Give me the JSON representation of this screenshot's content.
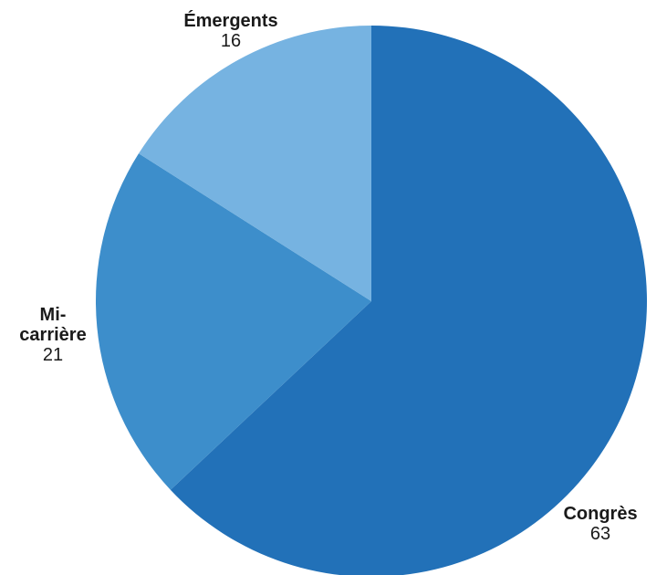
{
  "chart_data": {
    "type": "pie",
    "slices": [
      {
        "label": "Congrès",
        "value": 63,
        "color": "#2271b8"
      },
      {
        "label": "Mi-\ncarrière",
        "value": 21,
        "color": "#3d8ecb"
      },
      {
        "label": "Émergents",
        "value": 16,
        "color": "#76b3e1"
      }
    ],
    "start": "12 o'clock",
    "direction": "clockwise"
  }
}
